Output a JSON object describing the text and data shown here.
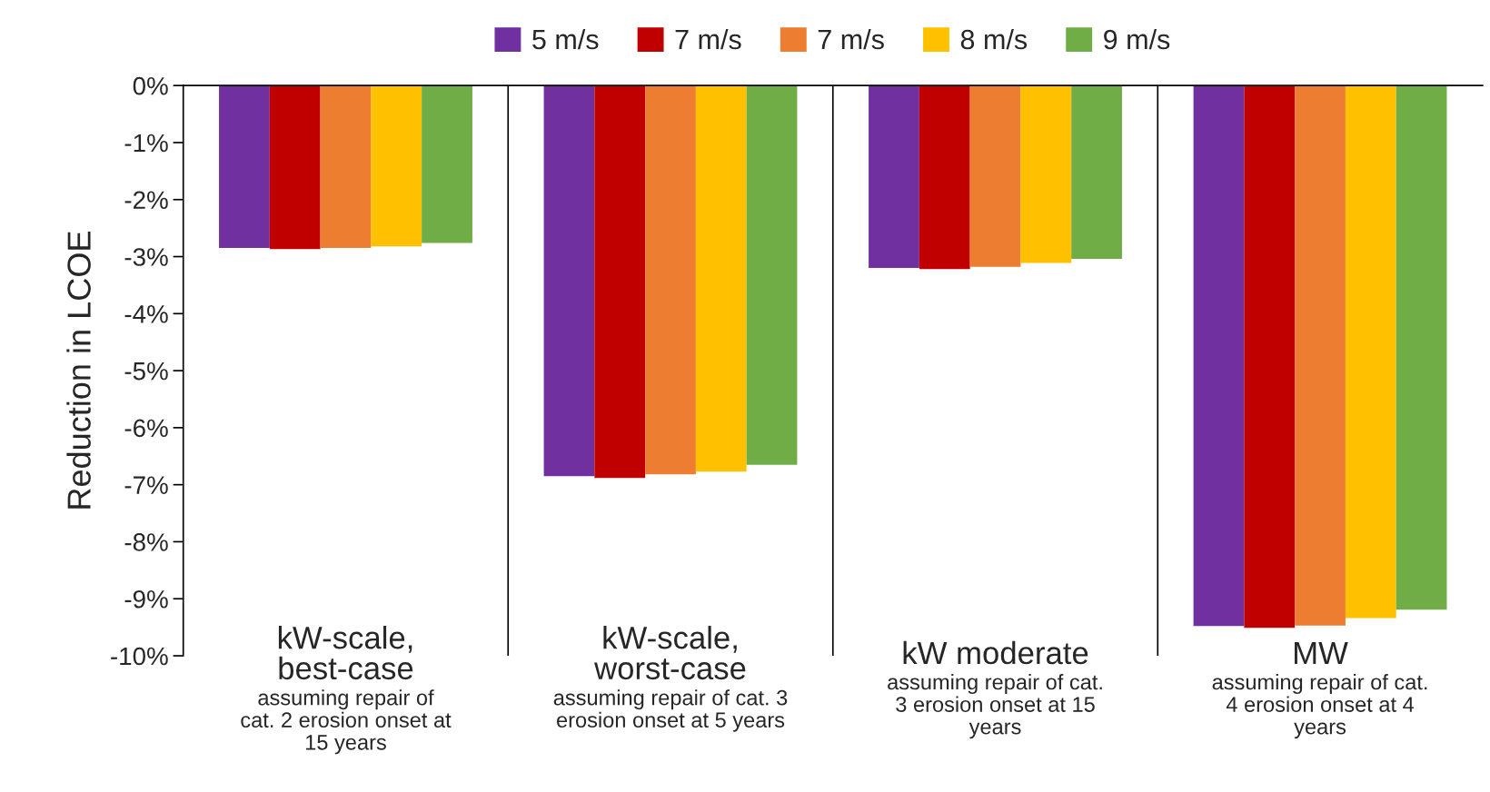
{
  "chart_data": {
    "type": "bar",
    "ylabel": "Reduction in LCOE",
    "categories": [
      "kW-scale,\nbest-case",
      "kW-scale,\nworst-case",
      "kW moderate",
      "MW"
    ],
    "annotations": [
      "assuming repair of\ncat. 2 erosion onset at\n15 years",
      "assuming repair of cat. 3\nerosion onset at 5 years",
      "assuming repair of cat.\n3 erosion onset at 15\nyears",
      "assuming repair of cat.\n4 erosion onset at 4\nyears"
    ],
    "series": [
      {
        "name": "5 m/s",
        "color": "#7030a0",
        "values": [
          -2.85,
          -6.85,
          -3.2,
          -9.48
        ]
      },
      {
        "name": "7 m/s",
        "color": "#c00000",
        "values": [
          -2.87,
          -6.88,
          -3.22,
          -9.51
        ]
      },
      {
        "name": "7 m/s",
        "color": "#ed7d31",
        "values": [
          -2.85,
          -6.82,
          -3.18,
          -9.47
        ]
      },
      {
        "name": "8 m/s",
        "color": "#ffc000",
        "values": [
          -2.82,
          -6.77,
          -3.11,
          -9.34
        ]
      },
      {
        "name": "9 m/s",
        "color": "#70ad47",
        "values": [
          -2.76,
          -6.65,
          -3.04,
          -9.19
        ]
      }
    ],
    "ylim": [
      -10,
      0
    ],
    "yticks": [
      {
        "value": 0,
        "label": "0%"
      },
      {
        "value": -1,
        "label": "-1%"
      },
      {
        "value": -2,
        "label": "-2%"
      },
      {
        "value": -3,
        "label": "-3%"
      },
      {
        "value": -4,
        "label": "-4%"
      },
      {
        "value": -5,
        "label": "-5%"
      },
      {
        "value": -6,
        "label": "-6%"
      },
      {
        "value": -7,
        "label": "-7%"
      },
      {
        "value": -8,
        "label": "-8%"
      },
      {
        "value": -9,
        "label": "-9%"
      },
      {
        "value": -10,
        "label": "-10%"
      }
    ],
    "grid": false,
    "legend": "top"
  }
}
